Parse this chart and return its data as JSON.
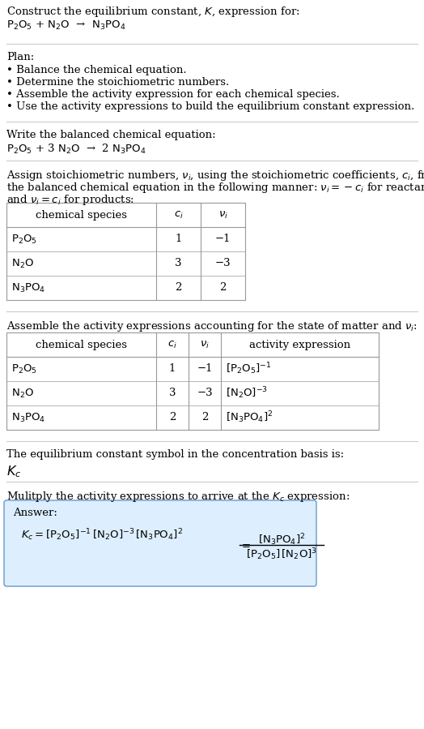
{
  "title_line1": "Construct the equilibrium constant, $K$, expression for:",
  "title_formula": "$\\mathrm{P_2O_5}$ + $\\mathrm{N_2O}$  →  $\\mathrm{N_3PO_4}$",
  "plan_header": "Plan:",
  "plan_items": [
    "• Balance the chemical equation.",
    "• Determine the stoichiometric numbers.",
    "• Assemble the activity expression for each chemical species.",
    "• Use the activity expressions to build the equilibrium constant expression."
  ],
  "balanced_header": "Write the balanced chemical equation:",
  "balanced_eq": "$\\mathrm{P_2O_5}$ + 3 $\\mathrm{N_2O}$  →  2 $\\mathrm{N_3PO_4}$",
  "stoich_text1": "Assign stoichiometric numbers, $\\nu_i$, using the stoichiometric coefficients, $c_i$, from",
  "stoich_text2": "the balanced chemical equation in the following manner: $\\nu_i = -c_i$ for reactants",
  "stoich_text3": "and $\\nu_i = c_i$ for products:",
  "table1_col_headers": [
    "chemical species",
    "$c_i$",
    "$\\nu_i$"
  ],
  "table1_rows": [
    [
      "$\\mathrm{P_2O_5}$",
      "1",
      "−1"
    ],
    [
      "$\\mathrm{N_2O}$",
      "3",
      "−3"
    ],
    [
      "$\\mathrm{N_3PO_4}$",
      "2",
      "2"
    ]
  ],
  "activity_header": "Assemble the activity expressions accounting for the state of matter and $\\nu_i$:",
  "table2_col_headers": [
    "chemical species",
    "$c_i$",
    "$\\nu_i$",
    "activity expression"
  ],
  "table2_rows": [
    [
      "$\\mathrm{P_2O_5}$",
      "1",
      "−1",
      "$\\mathrm{[P_2O_5]}^{-1}$"
    ],
    [
      "$\\mathrm{N_2O}$",
      "3",
      "−3",
      "$\\mathrm{[N_2O]}^{-3}$"
    ],
    [
      "$\\mathrm{N_3PO_4}$",
      "2",
      "2",
      "$\\mathrm{[N_3PO_4]}^2$"
    ]
  ],
  "kc_header": "The equilibrium constant symbol in the concentration basis is:",
  "kc_symbol": "$K_c$",
  "multiply_header": "Mulitply the activity expressions to arrive at the $K_c$ expression:",
  "answer_label": "Answer:",
  "bg_color": "#ffffff",
  "answer_bg": "#ddeeff",
  "table_border_color": "#999999",
  "text_color": "#000000",
  "font_size": 9.5,
  "answer_border_color": "#6699cc"
}
